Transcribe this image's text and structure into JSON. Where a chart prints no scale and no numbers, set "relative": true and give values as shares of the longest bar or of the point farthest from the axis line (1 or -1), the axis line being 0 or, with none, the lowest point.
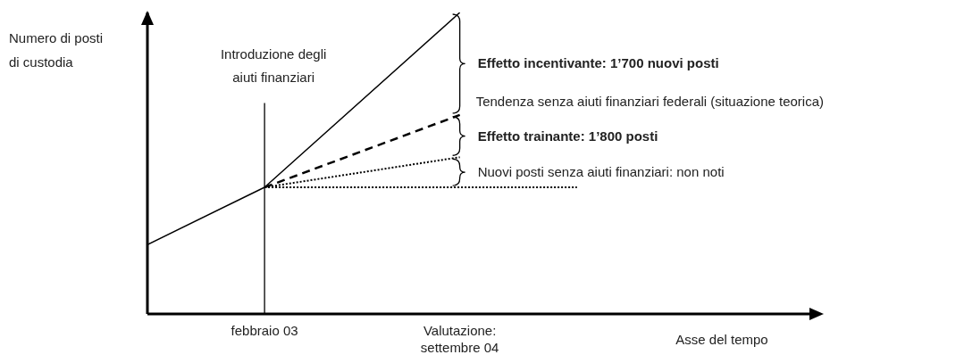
{
  "chart_data": {
    "type": "line",
    "relative": true,
    "marker": "none",
    "xlabel": "Asse del tempo",
    "ylabel": "Numero di posti di custodia",
    "categories": [
      null,
      null,
      null,
      "febbraio 03",
      null,
      null,
      null,
      null,
      "Valutazione: settembre 04",
      null,
      null,
      null,
      null,
      null,
      null,
      null,
      null,
      null
    ],
    "series": [
      {
        "color": "#000000",
        "line_style": "solid",
        "values": [
          0.23,
          null,
          null,
          0.42,
          null,
          null,
          null,
          null,
          1,
          null,
          null,
          null,
          null,
          null,
          null,
          null,
          null,
          null
        ]
      },
      {
        "name": "Tendenza senza aiuti finanziari federali (situazione teorica)",
        "color": "#000000",
        "line_style": "dashed",
        "values": [
          null,
          null,
          null,
          0.42,
          null,
          null,
          null,
          null,
          0.66,
          null,
          null,
          null,
          null,
          null,
          null,
          null,
          null,
          null
        ]
      },
      {
        "color": "#000000",
        "line_style": "dotted",
        "values": [
          null,
          null,
          null,
          0.42,
          null,
          null,
          null,
          null,
          0.52,
          null,
          null,
          null,
          null,
          null,
          null,
          null,
          null,
          null
        ]
      },
      {
        "color": "#000000",
        "line_style": "dotted",
        "values": [
          null,
          null,
          null,
          0.42,
          null,
          null,
          null,
          null,
          null,
          null,
          null,
          0.42,
          null,
          null,
          null,
          null,
          null,
          null
        ]
      }
    ],
    "ref_lines": [
      {
        "axis": "x",
        "value": "febbraio 03",
        "label": "Introduzione degli aiuti finanziari",
        "color": "#000000"
      }
    ],
    "annotations": [
      "Effetto incentivante: 1’700 nuovi posti",
      "Effetto trainante: 1’800 posti",
      "Nuovi posti senza aiuti finanziari: non noti"
    ]
  }
}
